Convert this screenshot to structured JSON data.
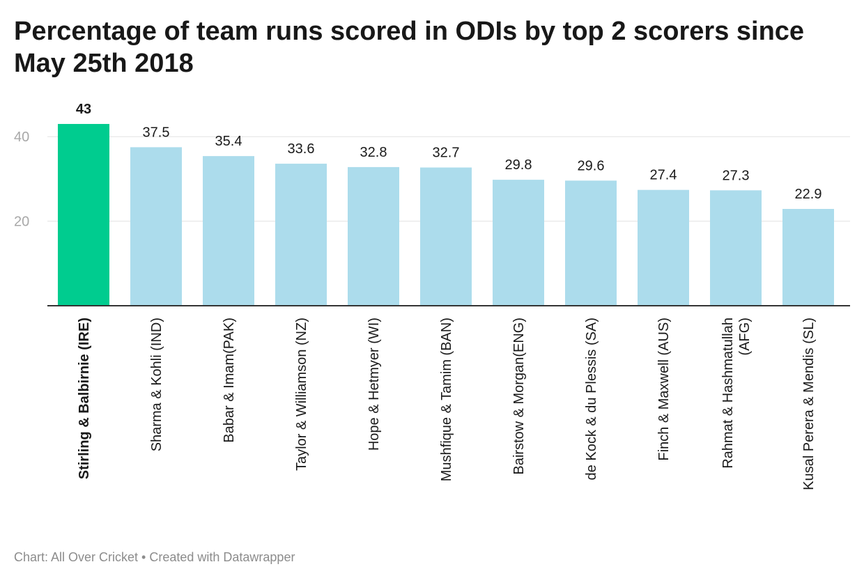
{
  "title": "Percentage of team runs scored in ODIs by top 2 scorers since May 25th 2018",
  "source": "Chart: All Over Cricket • Created with Datawrapper",
  "colors": {
    "highlight": "#00cc8f",
    "bar": "#acdcec",
    "grid": "#e2e2e2",
    "axis": "#333333"
  },
  "chart_data": {
    "type": "bar",
    "categories": [
      "Stirling & Balbirnie (IRE)",
      "Sharma & Kohli (IND)",
      "Babar & Imam(PAK)",
      "Taylor & Williamson (NZ)",
      "Hope & Hetmyer (WI)",
      "Mushfique & Tamim (BAN)",
      "Bairstow & Morgan(ENG)",
      "de Kock & du Plessis (SA)",
      "Finch & Maxwell (AUS)",
      "Rahmat & Hashmatullah (AFG)",
      "Kusal Perera & Mendis (SL)"
    ],
    "values": [
      43,
      37.5,
      35.4,
      33.6,
      32.8,
      32.7,
      29.8,
      29.6,
      27.4,
      27.3,
      22.9
    ],
    "value_labels": [
      "43",
      "37.5",
      "35.4",
      "33.6",
      "32.8",
      "32.7",
      "29.8",
      "29.6",
      "27.4",
      "27.3",
      "22.9"
    ],
    "highlight_index": 0,
    "yticks": [
      20,
      40
    ],
    "ylim": [
      0,
      43
    ],
    "grid": true
  }
}
